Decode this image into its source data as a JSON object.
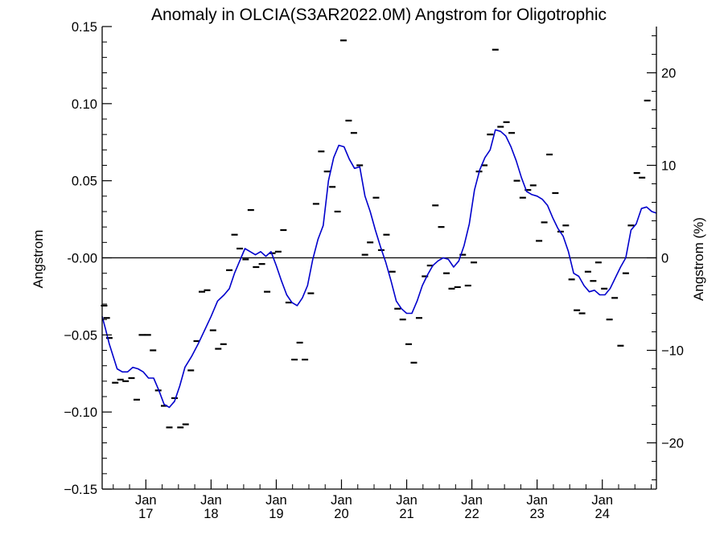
{
  "chart_data": {
    "type": "line",
    "title": "Anomaly in OLCIA(S3AR2022.0M) Angstrom for Oligotrophic",
    "ylabel": "Angstrom",
    "y2label": "Angstrom (%)",
    "xlim": [
      2016.33,
      2024.83
    ],
    "ylim": [
      -0.15,
      0.15
    ],
    "y2lim": [
      -25,
      25
    ],
    "y_ticks": [
      -0.15,
      -0.1,
      -0.05,
      0.0,
      0.05,
      0.1,
      0.15
    ],
    "y_tick_labels": [
      "−0.15",
      "−0.10",
      "−0.05",
      "-0.00",
      "0.05",
      "0.10",
      "0.15"
    ],
    "y2_ticks": [
      -20,
      -10,
      0,
      10,
      20
    ],
    "y2_tick_labels": [
      "−20",
      "−10",
      "0",
      "10",
      "20"
    ],
    "x_ticks": [
      {
        "x": 2017,
        "month": "Jan",
        "year": "17"
      },
      {
        "x": 2018,
        "month": "Jan",
        "year": "18"
      },
      {
        "x": 2019,
        "month": "Jan",
        "year": "19"
      },
      {
        "x": 2020,
        "month": "Jan",
        "year": "20"
      },
      {
        "x": 2021,
        "month": "Jan",
        "year": "21"
      },
      {
        "x": 2022,
        "month": "Jan",
        "year": "22"
      },
      {
        "x": 2023,
        "month": "Jan",
        "year": "23"
      },
      {
        "x": 2024,
        "month": "Jan",
        "year": "24"
      }
    ],
    "zero_line": 0,
    "line_color": "#0000cc",
    "marker_color": "#000000",
    "series": [
      {
        "kind": "monthly-anomaly-markers",
        "points": [
          [
            2016.36,
            -0.031
          ],
          [
            2016.4,
            -0.039
          ],
          [
            2016.44,
            -0.052
          ],
          [
            2016.53,
            -0.081
          ],
          [
            2016.61,
            -0.079
          ],
          [
            2016.69,
            -0.08
          ],
          [
            2016.78,
            -0.078
          ],
          [
            2016.86,
            -0.092
          ],
          [
            2016.94,
            -0.05
          ],
          [
            2017.03,
            -0.05
          ],
          [
            2017.11,
            -0.06
          ],
          [
            2017.19,
            -0.086
          ],
          [
            2017.28,
            -0.096
          ],
          [
            2017.36,
            -0.11
          ],
          [
            2017.44,
            -0.091
          ],
          [
            2017.53,
            -0.11
          ],
          [
            2017.61,
            -0.108
          ],
          [
            2017.69,
            -0.073
          ],
          [
            2017.78,
            -0.054
          ],
          [
            2017.86,
            -0.022
          ],
          [
            2017.94,
            -0.021
          ],
          [
            2018.03,
            -0.047
          ],
          [
            2018.11,
            -0.059
          ],
          [
            2018.19,
            -0.056
          ],
          [
            2018.28,
            -0.008
          ],
          [
            2018.36,
            0.015
          ],
          [
            2018.44,
            0.006
          ],
          [
            2018.53,
            -0.001
          ],
          [
            2018.61,
            0.031
          ],
          [
            2018.69,
            -0.006
          ],
          [
            2018.78,
            -0.004
          ],
          [
            2018.86,
            -0.022
          ],
          [
            2018.94,
            0.003
          ],
          [
            2019.03,
            0.004
          ],
          [
            2019.11,
            0.018
          ],
          [
            2019.19,
            -0.029
          ],
          [
            2019.28,
            -0.066
          ],
          [
            2019.36,
            -0.055
          ],
          [
            2019.44,
            -0.066
          ],
          [
            2019.53,
            -0.023
          ],
          [
            2019.61,
            0.035
          ],
          [
            2019.69,
            0.069
          ],
          [
            2019.78,
            0.056
          ],
          [
            2019.86,
            0.046
          ],
          [
            2019.94,
            0.03
          ],
          [
            2020.03,
            0.141
          ],
          [
            2020.11,
            0.089
          ],
          [
            2020.19,
            0.081
          ],
          [
            2020.28,
            0.06
          ],
          [
            2020.36,
            0.002
          ],
          [
            2020.44,
            0.01
          ],
          [
            2020.53,
            0.039
          ],
          [
            2020.61,
            0.005
          ],
          [
            2020.69,
            0.015
          ],
          [
            2020.78,
            -0.009
          ],
          [
            2020.86,
            -0.033
          ],
          [
            2020.94,
            -0.04
          ],
          [
            2021.03,
            -0.056
          ],
          [
            2021.11,
            -0.068
          ],
          [
            2021.19,
            -0.039
          ],
          [
            2021.28,
            -0.012
          ],
          [
            2021.36,
            -0.005
          ],
          [
            2021.44,
            0.034
          ],
          [
            2021.53,
            0.02
          ],
          [
            2021.61,
            -0.01
          ],
          [
            2021.69,
            -0.02
          ],
          [
            2021.78,
            -0.019
          ],
          [
            2021.86,
            0.002
          ],
          [
            2021.94,
            -0.018
          ],
          [
            2022.03,
            -0.003
          ],
          [
            2022.11,
            0.056
          ],
          [
            2022.19,
            0.06
          ],
          [
            2022.28,
            0.08
          ],
          [
            2022.36,
            0.135
          ],
          [
            2022.44,
            0.085
          ],
          [
            2022.53,
            0.088
          ],
          [
            2022.61,
            0.081
          ],
          [
            2022.69,
            0.05
          ],
          [
            2022.78,
            0.039
          ],
          [
            2022.86,
            0.044
          ],
          [
            2022.94,
            0.047
          ],
          [
            2023.03,
            0.011
          ],
          [
            2023.11,
            0.023
          ],
          [
            2023.19,
            0.067
          ],
          [
            2023.28,
            0.042
          ],
          [
            2023.36,
            0.017
          ],
          [
            2023.44,
            0.021
          ],
          [
            2023.53,
            -0.014
          ],
          [
            2023.61,
            -0.034
          ],
          [
            2023.69,
            -0.036
          ],
          [
            2023.78,
            -0.009
          ],
          [
            2023.86,
            -0.015
          ],
          [
            2023.94,
            -0.003
          ],
          [
            2024.03,
            -0.02
          ],
          [
            2024.11,
            -0.04
          ],
          [
            2024.19,
            -0.026
          ],
          [
            2024.28,
            -0.057
          ],
          [
            2024.36,
            -0.01
          ],
          [
            2024.44,
            0.021
          ],
          [
            2024.53,
            0.055
          ],
          [
            2024.61,
            0.052
          ],
          [
            2024.69,
            0.102
          ]
        ]
      },
      {
        "kind": "smoothed-line",
        "points": [
          [
            2016.33,
            -0.038
          ],
          [
            2016.38,
            -0.046
          ],
          [
            2016.44,
            -0.056
          ],
          [
            2016.5,
            -0.064
          ],
          [
            2016.56,
            -0.072
          ],
          [
            2016.64,
            -0.074
          ],
          [
            2016.72,
            -0.074
          ],
          [
            2016.8,
            -0.071
          ],
          [
            2016.88,
            -0.072
          ],
          [
            2016.96,
            -0.074
          ],
          [
            2017.04,
            -0.078
          ],
          [
            2017.12,
            -0.078
          ],
          [
            2017.2,
            -0.086
          ],
          [
            2017.28,
            -0.095
          ],
          [
            2017.36,
            -0.097
          ],
          [
            2017.44,
            -0.093
          ],
          [
            2017.52,
            -0.083
          ],
          [
            2017.6,
            -0.071
          ],
          [
            2017.7,
            -0.064
          ],
          [
            2017.8,
            -0.056
          ],
          [
            2017.9,
            -0.047
          ],
          [
            2018.0,
            -0.038
          ],
          [
            2018.1,
            -0.028
          ],
          [
            2018.2,
            -0.024
          ],
          [
            2018.28,
            -0.02
          ],
          [
            2018.36,
            -0.01
          ],
          [
            2018.44,
            -0.002
          ],
          [
            2018.52,
            0.006
          ],
          [
            2018.6,
            0.004
          ],
          [
            2018.68,
            0.002
          ],
          [
            2018.76,
            0.004
          ],
          [
            2018.84,
            0.001
          ],
          [
            2018.92,
            0.004
          ],
          [
            2019.0,
            -0.005
          ],
          [
            2019.08,
            -0.015
          ],
          [
            2019.16,
            -0.024
          ],
          [
            2019.24,
            -0.029
          ],
          [
            2019.32,
            -0.031
          ],
          [
            2019.4,
            -0.026
          ],
          [
            2019.48,
            -0.018
          ],
          [
            2019.56,
            -0.001
          ],
          [
            2019.64,
            0.012
          ],
          [
            2019.72,
            0.021
          ],
          [
            2019.8,
            0.05
          ],
          [
            2019.88,
            0.065
          ],
          [
            2019.96,
            0.073
          ],
          [
            2020.04,
            0.072
          ],
          [
            2020.12,
            0.064
          ],
          [
            2020.2,
            0.058
          ],
          [
            2020.28,
            0.059
          ],
          [
            2020.36,
            0.04
          ],
          [
            2020.44,
            0.03
          ],
          [
            2020.52,
            0.018
          ],
          [
            2020.6,
            0.007
          ],
          [
            2020.68,
            -0.003
          ],
          [
            2020.76,
            -0.015
          ],
          [
            2020.84,
            -0.028
          ],
          [
            2020.92,
            -0.033
          ],
          [
            2021.0,
            -0.036
          ],
          [
            2021.08,
            -0.036
          ],
          [
            2021.16,
            -0.028
          ],
          [
            2021.24,
            -0.018
          ],
          [
            2021.32,
            -0.011
          ],
          [
            2021.4,
            -0.005
          ],
          [
            2021.48,
            -0.002
          ],
          [
            2021.56,
            0.0
          ],
          [
            2021.64,
            -0.001
          ],
          [
            2021.72,
            -0.006
          ],
          [
            2021.8,
            -0.002
          ],
          [
            2021.88,
            0.008
          ],
          [
            2021.96,
            0.022
          ],
          [
            2022.04,
            0.044
          ],
          [
            2022.12,
            0.057
          ],
          [
            2022.2,
            0.065
          ],
          [
            2022.28,
            0.07
          ],
          [
            2022.36,
            0.083
          ],
          [
            2022.44,
            0.082
          ],
          [
            2022.52,
            0.079
          ],
          [
            2022.6,
            0.072
          ],
          [
            2022.68,
            0.063
          ],
          [
            2022.76,
            0.052
          ],
          [
            2022.84,
            0.043
          ],
          [
            2022.92,
            0.041
          ],
          [
            2023.0,
            0.04
          ],
          [
            2023.08,
            0.038
          ],
          [
            2023.16,
            0.034
          ],
          [
            2023.24,
            0.026
          ],
          [
            2023.32,
            0.019
          ],
          [
            2023.4,
            0.014
          ],
          [
            2023.48,
            0.004
          ],
          [
            2023.56,
            -0.01
          ],
          [
            2023.64,
            -0.012
          ],
          [
            2023.72,
            -0.018
          ],
          [
            2023.8,
            -0.022
          ],
          [
            2023.88,
            -0.021
          ],
          [
            2023.96,
            -0.024
          ],
          [
            2024.04,
            -0.024
          ],
          [
            2024.12,
            -0.02
          ],
          [
            2024.2,
            -0.013
          ],
          [
            2024.28,
            -0.006
          ],
          [
            2024.36,
            0.0
          ],
          [
            2024.44,
            0.018
          ],
          [
            2024.52,
            0.022
          ],
          [
            2024.6,
            0.032
          ],
          [
            2024.68,
            0.033
          ],
          [
            2024.76,
            0.03
          ],
          [
            2024.83,
            0.029
          ]
        ]
      }
    ]
  }
}
